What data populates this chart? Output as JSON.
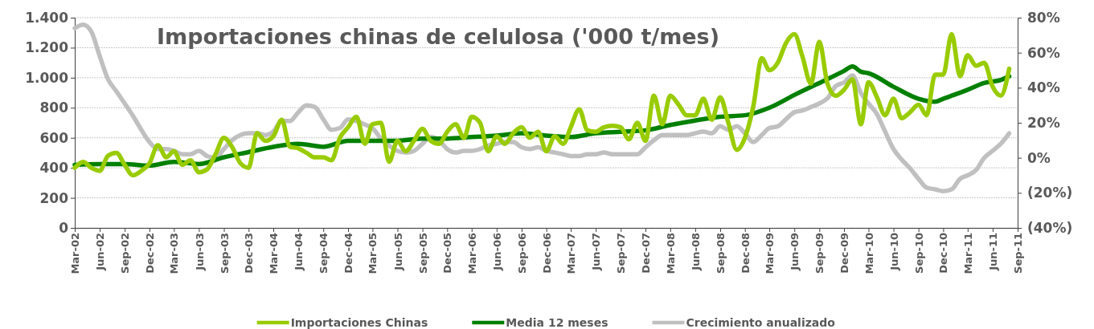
{
  "chart_data": {
    "type": "line",
    "title": "Importaciones chinas de celulosa ('000 t/mes)",
    "xlim": [
      "2002-03",
      "2011-09"
    ],
    "xticks": [
      {
        "value": "2002-03",
        "label": "Mar-02"
      },
      {
        "value": "2002-06",
        "label": "Jun-02"
      },
      {
        "value": "2002-09",
        "label": "Sep-02"
      },
      {
        "value": "2002-12",
        "label": "Dec-02"
      },
      {
        "value": "2003-03",
        "label": "Mar-03"
      },
      {
        "value": "2003-06",
        "label": "Jun-03"
      },
      {
        "value": "2003-09",
        "label": "Sep-03"
      },
      {
        "value": "2003-12",
        "label": "Dec-03"
      },
      {
        "value": "2004-03",
        "label": "Mar-04"
      },
      {
        "value": "2004-06",
        "label": "Jun-04"
      },
      {
        "value": "2004-09",
        "label": "Sep-04"
      },
      {
        "value": "2004-12",
        "label": "Dec-04"
      },
      {
        "value": "2005-03",
        "label": "Mar-05"
      },
      {
        "value": "2005-06",
        "label": "Jun-05"
      },
      {
        "value": "2005-09",
        "label": "Sep-05"
      },
      {
        "value": "2005-12",
        "label": "Dec-05"
      },
      {
        "value": "2006-03",
        "label": "Mar-06"
      },
      {
        "value": "2006-06",
        "label": "Jun-06"
      },
      {
        "value": "2006-09",
        "label": "Sep-06"
      },
      {
        "value": "2006-12",
        "label": "Dec-06"
      },
      {
        "value": "2007-03",
        "label": "Mar-07"
      },
      {
        "value": "2007-06",
        "label": "Jun-07"
      },
      {
        "value": "2007-09",
        "label": "Sep-07"
      },
      {
        "value": "2007-12",
        "label": "Dec-07"
      },
      {
        "value": "2008-03",
        "label": "Mar-08"
      },
      {
        "value": "2008-06",
        "label": "Jun-08"
      },
      {
        "value": "2008-09",
        "label": "Sep-08"
      },
      {
        "value": "2008-12",
        "label": "Dec-08"
      },
      {
        "value": "2009-03",
        "label": "Mar-09"
      },
      {
        "value": "2009-06",
        "label": "Jun-09"
      },
      {
        "value": "2009-09",
        "label": "Sep-09"
      },
      {
        "value": "2009-12",
        "label": "Dec-09"
      },
      {
        "value": "2010-03",
        "label": "Mar-10"
      },
      {
        "value": "2010-06",
        "label": "Jun-10"
      },
      {
        "value": "2010-09",
        "label": "Sep-10"
      },
      {
        "value": "2010-12",
        "label": "Dec-10"
      },
      {
        "value": "2011-03",
        "label": "Mar-11"
      },
      {
        "value": "2011-06",
        "label": "Jun-11"
      },
      {
        "value": "2011-09",
        "label": "Sep-11"
      }
    ],
    "ylim": [
      0,
      1400
    ],
    "yticks": [
      0,
      200,
      400,
      600,
      800,
      {
        "value": 1000,
        "label": "1.000"
      },
      {
        "value": 1200,
        "label": "1.200"
      },
      {
        "value": 1400,
        "label": "1.400"
      }
    ],
    "y2lim": [
      -40,
      80
    ],
    "y2ticks": [
      {
        "value": -40,
        "label": "(40%)"
      },
      {
        "value": -20,
        "label": "(20%)"
      },
      {
        "value": 0,
        "label": "0%"
      },
      {
        "value": 20,
        "label": "20%"
      },
      {
        "value": 40,
        "label": "40%"
      },
      {
        "value": 60,
        "label": "60%"
      },
      {
        "value": 80,
        "label": "80%"
      }
    ],
    "grid": "y",
    "legend": "bottom",
    "line_style": "solid",
    "series": [
      {
        "name": "Importaciones Chinas",
        "color": "#99cc00",
        "x": [
          "2002-03",
          "2002-04",
          "2002-05",
          "2002-06",
          "2002-07",
          "2002-08",
          "2002-09",
          "2002-10",
          "2002-11",
          "2002-12",
          "2003-01",
          "2003-02",
          "2003-03",
          "2003-04",
          "2003-05",
          "2003-06",
          "2003-07",
          "2003-08",
          "2003-09",
          "2003-10",
          "2003-11",
          "2003-12",
          "2004-01",
          "2004-02",
          "2004-03",
          "2004-04",
          "2004-05",
          "2004-06",
          "2004-07",
          "2004-08",
          "2004-09",
          "2004-10",
          "2004-11",
          "2004-12",
          "2005-01",
          "2005-02",
          "2005-03",
          "2005-04",
          "2005-05",
          "2005-06",
          "2005-07",
          "2005-08",
          "2005-09",
          "2005-10",
          "2005-11",
          "2005-12",
          "2006-01",
          "2006-02",
          "2006-03",
          "2006-04",
          "2006-05",
          "2006-06",
          "2006-07",
          "2006-08",
          "2006-09",
          "2006-10",
          "2006-11",
          "2006-12",
          "2007-01",
          "2007-02",
          "2007-03",
          "2007-04",
          "2007-05",
          "2007-06",
          "2007-07",
          "2007-08",
          "2007-09",
          "2007-10",
          "2007-11",
          "2007-12",
          "2008-01",
          "2008-02",
          "2008-03",
          "2008-04",
          "2008-05",
          "2008-06",
          "2008-07",
          "2008-08",
          "2008-09",
          "2008-10",
          "2008-11",
          "2008-12",
          "2009-01",
          "2009-02",
          "2009-03",
          "2009-04",
          "2009-05",
          "2009-06",
          "2009-07",
          "2009-08",
          "2009-09",
          "2009-10",
          "2009-11",
          "2009-12",
          "2010-01",
          "2010-02",
          "2010-03",
          "2010-04",
          "2010-05",
          "2010-06",
          "2010-07",
          "2010-08",
          "2010-09",
          "2010-10",
          "2010-11",
          "2010-12",
          "2011-01",
          "2011-02",
          "2011-03",
          "2011-04",
          "2011-05",
          "2011-06",
          "2011-07",
          "2011-08"
        ],
        "values": [
          400,
          440,
          400,
          380,
          480,
          500,
          420,
          350,
          380,
          430,
          550,
          470,
          510,
          420,
          450,
          370,
          390,
          490,
          600,
          540,
          430,
          400,
          630,
          580,
          610,
          720,
          540,
          530,
          500,
          470,
          470,
          450,
          600,
          670,
          740,
          560,
          690,
          700,
          440,
          580,
          510,
          580,
          660,
          580,
          560,
          640,
          690,
          600,
          740,
          700,
          510,
          610,
          560,
          630,
          670,
          600,
          640,
          510,
          610,
          560,
          670,
          790,
          650,
          640,
          670,
          680,
          670,
          590,
          700,
          580,
          880,
          690,
          880,
          820,
          750,
          750,
          860,
          720,
          870,
          700,
          520,
          600,
          810,
          1130,
          1050,
          1100,
          1230,
          1290,
          1140,
          960,
          1240,
          960,
          880,
          920,
          990,
          690,
          970,
          870,
          750,
          860,
          730,
          770,
          820,
          750,
          1020,
          1020,
          1290,
          1010,
          1150,
          1080,
          1100,
          940,
          880,
          1060
        ]
      },
      {
        "name": "Media 12 meses",
        "color": "#008000",
        "x": [
          "2002-03",
          "2002-06",
          "2002-09",
          "2002-12",
          "2003-03",
          "2003-06",
          "2003-09",
          "2003-12",
          "2004-03",
          "2004-06",
          "2004-09",
          "2004-12",
          "2005-03",
          "2005-06",
          "2005-09",
          "2005-12",
          "2006-03",
          "2006-06",
          "2006-09",
          "2006-12",
          "2007-03",
          "2007-06",
          "2007-09",
          "2007-12",
          "2008-03",
          "2008-06",
          "2008-09",
          "2008-12",
          "2009-03",
          "2009-06",
          "2009-09",
          "2009-12",
          "2010-01",
          "2010-02",
          "2010-03",
          "2010-06",
          "2010-09",
          "2010-11",
          "2010-12",
          "2011-03",
          "2011-05",
          "2011-07",
          "2011-08"
        ],
        "values": [
          420,
          425,
          425,
          415,
          440,
          425,
          470,
          505,
          540,
          560,
          540,
          580,
          580,
          580,
          595,
          595,
          605,
          615,
          630,
          615,
          605,
          630,
          640,
          650,
          685,
          715,
          740,
          750,
          800,
          885,
          965,
          1045,
          1075,
          1040,
          1030,
          940,
          860,
          840,
          860,
          920,
          965,
          985,
          1010
        ]
      },
      {
        "name": "Crecimiento anualizado",
        "color": "#c0c0c0",
        "axis": "y2",
        "x": [
          "2002-03",
          "2002-04",
          "2002-05",
          "2002-06",
          "2002-07",
          "2002-08",
          "2002-09",
          "2002-10",
          "2002-11",
          "2002-12",
          "2003-01",
          "2003-02",
          "2003-03",
          "2003-04",
          "2003-05",
          "2003-06",
          "2003-07",
          "2003-08",
          "2003-09",
          "2003-10",
          "2003-11",
          "2003-12",
          "2004-01",
          "2004-02",
          "2004-03",
          "2004-04",
          "2004-05",
          "2004-06",
          "2004-07",
          "2004-08",
          "2004-09",
          "2004-10",
          "2004-11",
          "2004-12",
          "2005-01",
          "2005-02",
          "2005-03",
          "2005-04",
          "2005-05",
          "2005-06",
          "2005-07",
          "2005-08",
          "2005-09",
          "2005-10",
          "2005-11",
          "2005-12",
          "2006-01",
          "2006-02",
          "2006-03",
          "2006-04",
          "2006-05",
          "2006-06",
          "2006-07",
          "2006-08",
          "2006-09",
          "2006-10",
          "2006-11",
          "2006-12",
          "2007-01",
          "2007-02",
          "2007-03",
          "2007-04",
          "2007-05",
          "2007-06",
          "2007-07",
          "2007-08",
          "2007-09",
          "2007-10",
          "2007-11",
          "2007-12",
          "2008-01",
          "2008-02",
          "2008-03",
          "2008-04",
          "2008-05",
          "2008-06",
          "2008-07",
          "2008-08",
          "2008-09",
          "2008-10",
          "2008-11",
          "2008-12",
          "2009-01",
          "2009-02",
          "2009-03",
          "2009-04",
          "2009-05",
          "2009-06",
          "2009-07",
          "2009-08",
          "2009-09",
          "2009-10",
          "2009-11",
          "2009-12",
          "2010-01",
          "2010-02",
          "2010-03",
          "2010-04",
          "2010-05",
          "2010-06",
          "2010-07",
          "2010-08",
          "2010-09",
          "2010-10",
          "2010-11",
          "2010-12",
          "2011-01",
          "2011-02",
          "2011-03",
          "2011-04",
          "2011-05",
          "2011-06",
          "2011-07",
          "2011-08"
        ],
        "values": [
          74,
          76,
          72,
          58,
          45,
          38,
          31,
          24,
          16,
          9,
          5,
          5,
          4,
          2,
          2,
          4,
          1,
          0,
          5,
          10,
          13,
          14,
          14,
          13,
          15,
          21,
          21,
          26,
          30,
          29,
          22,
          16,
          17,
          22,
          21,
          19,
          17,
          11,
          7,
          4,
          3,
          4,
          8,
          12,
          10,
          5,
          3,
          4,
          4,
          5,
          7,
          8,
          9,
          9,
          6,
          5,
          6,
          4,
          3,
          2,
          1,
          1,
          2,
          2,
          3,
          2,
          2,
          2,
          2,
          6,
          10,
          13,
          13,
          13,
          13,
          14,
          15,
          14,
          18,
          16,
          18,
          14,
          9,
          13,
          17,
          18,
          22,
          26,
          27,
          29,
          31,
          34,
          41,
          43,
          47,
          37,
          31,
          25,
          15,
          5,
          -1,
          -6,
          -12,
          -17,
          -18,
          -19,
          -18,
          -12,
          -10,
          -7,
          0,
          4,
          8,
          14
        ]
      }
    ]
  }
}
